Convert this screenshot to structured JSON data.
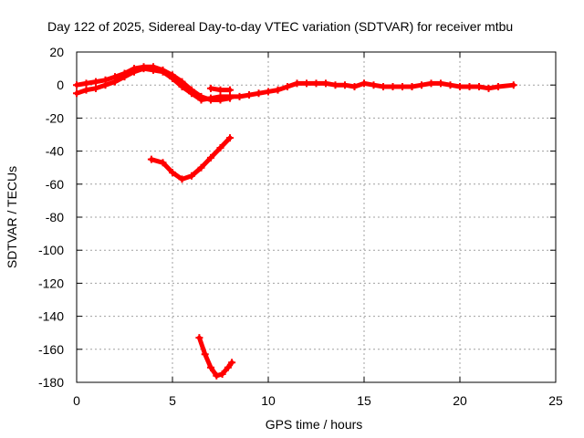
{
  "chart_data": {
    "type": "line",
    "title": "Day 122 of 2025, Sidereal Day-to-day VTEC variation (SDTVAR) for receiver mtbu",
    "xlabel": "GPS time / hours",
    "ylabel": "SDTVAR / TECUs",
    "xlim": [
      0,
      25
    ],
    "ylim": [
      -180,
      20
    ],
    "xticks": [
      0,
      5,
      10,
      15,
      20,
      25
    ],
    "yticks": [
      20,
      0,
      -20,
      -40,
      -60,
      -80,
      -100,
      -120,
      -140,
      -160,
      -180
    ],
    "grid": true,
    "color": "#ff0000",
    "series": [
      {
        "name": "main-track",
        "x": [
          0,
          0.5,
          1,
          1.5,
          2,
          2.5,
          3,
          3.5,
          4,
          4.5,
          5,
          5.5,
          6,
          6.5,
          7,
          7.5,
          8,
          8.5,
          9,
          9.5,
          10,
          10.5,
          11,
          11.5,
          12,
          12.5,
          13,
          13.5,
          14,
          14.5,
          15,
          15.5,
          16,
          16.5,
          17,
          17.5,
          18,
          18.5,
          19,
          19.5,
          20,
          20.5,
          21,
          21.5,
          22,
          22.8
        ],
        "y": [
          -5,
          -3,
          -2,
          0,
          2,
          5,
          8,
          10,
          9,
          8,
          4,
          -1,
          -5,
          -9,
          -8,
          -7,
          -7,
          -7,
          -6,
          -5,
          -4,
          -3,
          -1,
          1,
          1,
          1,
          1,
          0,
          0,
          -1,
          1,
          0,
          -1,
          -1,
          -1,
          -1,
          0,
          1,
          1,
          0,
          -1,
          -1,
          -1,
          -2,
          -1,
          0
        ]
      },
      {
        "name": "main-track-2",
        "x": [
          0,
          0.5,
          1,
          1.5,
          2,
          2.5,
          3,
          3.5,
          4,
          4.5,
          5,
          5.5,
          6,
          6.5,
          7,
          7.5,
          8
        ],
        "y": [
          0,
          1,
          2,
          3,
          5,
          7,
          10,
          11,
          11,
          9,
          6,
          2,
          -3,
          -7,
          -9,
          -9,
          -8
        ]
      },
      {
        "name": "segment-a",
        "x": [
          7.0,
          7.5,
          8.0
        ],
        "y": [
          -2,
          -3,
          -3
        ]
      },
      {
        "name": "segment-b",
        "x": [
          3.9,
          4.5,
          5.0,
          5.5,
          6.0,
          6.5,
          7.0,
          7.5,
          8.0
        ],
        "y": [
          -45,
          -47,
          -53,
          -57,
          -55,
          -50,
          -44,
          -38,
          -32
        ]
      },
      {
        "name": "segment-c",
        "x": [
          6.4,
          6.7,
          7.0,
          7.3,
          7.6,
          7.9,
          8.1
        ],
        "y": [
          -153,
          -163,
          -171,
          -176,
          -175,
          -171,
          -168
        ]
      }
    ]
  }
}
